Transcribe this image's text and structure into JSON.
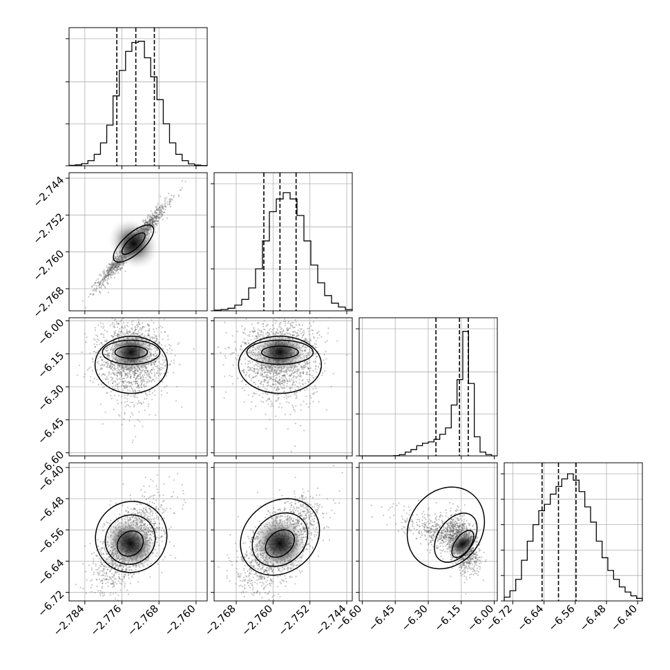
{
  "chart_data": {
    "type": "corner",
    "title": "",
    "params": [
      {
        "range": [
          -2.7874,
          -2.7576
        ],
        "ticks": [
          -2.784,
          -2.776,
          -2.768,
          -2.76
        ],
        "tick_labels": [
          "−2.784",
          "−2.776",
          "−2.768",
          "−2.760"
        ],
        "quantiles": [
          -2.7771,
          -2.773,
          -2.769
        ],
        "hist_bins": [
          0.003,
          0.007,
          0.017,
          0.04,
          0.09,
          0.18,
          0.32,
          0.55,
          0.75,
          0.9,
          0.97,
          0.98,
          0.85,
          0.7,
          0.52,
          0.33,
          0.18,
          0.09,
          0.04,
          0.015,
          0.005,
          0.002
        ]
      },
      {
        "range": [
          -2.7728,
          -2.7428
        ],
        "ticks": [
          -2.768,
          -2.76,
          -2.752,
          -2.744
        ],
        "tick_labels": [
          "−2.768",
          "−2.760",
          "−2.752",
          "−2.744"
        ],
        "quantiles": [
          -2.762,
          -2.7585,
          -2.755
        ],
        "hist_bins": [
          0.005,
          0.01,
          0.02,
          0.045,
          0.09,
          0.18,
          0.33,
          0.55,
          0.78,
          0.88,
          0.93,
          0.88,
          0.75,
          0.55,
          0.36,
          0.22,
          0.12,
          0.06,
          0.03,
          0.01
        ]
      },
      {
        "range": [
          -6.614,
          -5.986
        ],
        "ticks": [
          -6.6,
          -6.45,
          -6.3,
          -6.15,
          -6.0
        ],
        "tick_labels": [
          "−6.60",
          "−6.45",
          "−6.30",
          "−6.15",
          "−6.00"
        ],
        "quantiles": [
          -6.265,
          -6.158,
          -6.118
        ],
        "hist_bins": [
          0.0,
          0.0,
          0.0,
          0.0,
          0.0,
          0.0,
          0.002,
          0.01,
          0.03,
          0.05,
          0.08,
          0.1,
          0.11,
          0.13,
          0.17,
          0.22,
          0.4,
          0.6,
          0.98,
          0.57,
          0.15,
          0.03,
          0.01,
          0.0
        ]
      },
      {
        "range": [
          -6.742,
          -6.388
        ],
        "ticks": [
          -6.72,
          -6.64,
          -6.56,
          -6.48,
          -6.4
        ],
        "tick_labels": [
          "−6.72",
          "−6.64",
          "−6.56",
          "−6.48",
          "−6.40"
        ],
        "quantiles": [
          -6.645,
          -6.603,
          -6.558
        ],
        "hist_bins": [
          0.03,
          0.08,
          0.17,
          0.32,
          0.47,
          0.6,
          0.71,
          0.76,
          0.84,
          0.9,
          0.96,
          1.0,
          0.95,
          0.86,
          0.74,
          0.62,
          0.47,
          0.34,
          0.24,
          0.17,
          0.11,
          0.07,
          0.04,
          0.02
        ]
      }
    ],
    "hist_y_ticks": [
      [
        0,
        0.33,
        0.66,
        1.0
      ],
      [
        0,
        0.33,
        0.66,
        1.0
      ],
      [
        0,
        0.33,
        0.66,
        1.0
      ],
      [
        0,
        0.2,
        0.4,
        0.6,
        0.8,
        1.0
      ]
    ],
    "grid": true,
    "pairs": [
      {
        "x": 0,
        "y": 1,
        "center": [
          -2.7735,
          -2.7582
        ],
        "sd": [
          0.0035,
          0.0042
        ],
        "corr": 0.97,
        "contours": [
          [
            -2.7735,
            -2.7582,
            0.0032,
            0.0012
          ],
          [
            -2.7735,
            -2.7582,
            0.0055,
            0.0022
          ]
        ]
      },
      {
        "x": 0,
        "y": 2,
        "center": [
          -2.774,
          -6.143
        ],
        "sd": [
          0.0036,
          0.07
        ],
        "corr": 0.0,
        "contours": [
          [
            -2.774,
            -6.143,
            0.0035,
            0.028
          ],
          [
            -2.774,
            -6.143,
            0.0062,
            0.055
          ],
          [
            -2.774,
            -6.2,
            0.0078,
            0.13
          ]
        ]
      },
      {
        "x": 1,
        "y": 2,
        "center": [
          -2.7585,
          -6.143
        ],
        "sd": [
          0.0042,
          0.07
        ],
        "corr": 0.0,
        "contours": [
          [
            -2.7585,
            -6.143,
            0.004,
            0.028
          ],
          [
            -2.7585,
            -6.143,
            0.0072,
            0.055
          ],
          [
            -2.7585,
            -6.2,
            0.009,
            0.13
          ]
        ]
      },
      {
        "x": 0,
        "y": 3,
        "center": [
          -2.7742,
          -6.595
        ],
        "sd": [
          0.0036,
          0.055
        ],
        "corr": 0.6,
        "contours": [
          [
            -2.7742,
            -6.595,
            0.003,
            0.03
          ],
          [
            -2.7742,
            -6.585,
            0.0055,
            0.062
          ],
          [
            -2.774,
            -6.578,
            0.0078,
            0.09
          ]
        ]
      },
      {
        "x": 1,
        "y": 3,
        "center": [
          -2.7585,
          -6.595
        ],
        "sd": [
          0.0042,
          0.055
        ],
        "corr": 0.6,
        "contours": [
          [
            -2.7585,
            -6.595,
            0.0035,
            0.03
          ],
          [
            -2.7585,
            -6.585,
            0.0065,
            0.062
          ],
          [
            -2.7585,
            -6.578,
            0.0092,
            0.09
          ]
        ]
      },
      {
        "x": 2,
        "y": 3,
        "center": [
          -6.143,
          -6.596
        ],
        "sd": [
          0.035,
          0.035
        ],
        "corr": -0.5,
        "contours": [
          [
            -6.143,
            -6.596,
            0.035,
            0.04
          ],
          [
            -6.175,
            -6.58,
            0.08,
            0.07
          ],
          [
            -6.22,
            -6.555,
            0.165,
            0.11
          ]
        ]
      }
    ]
  }
}
